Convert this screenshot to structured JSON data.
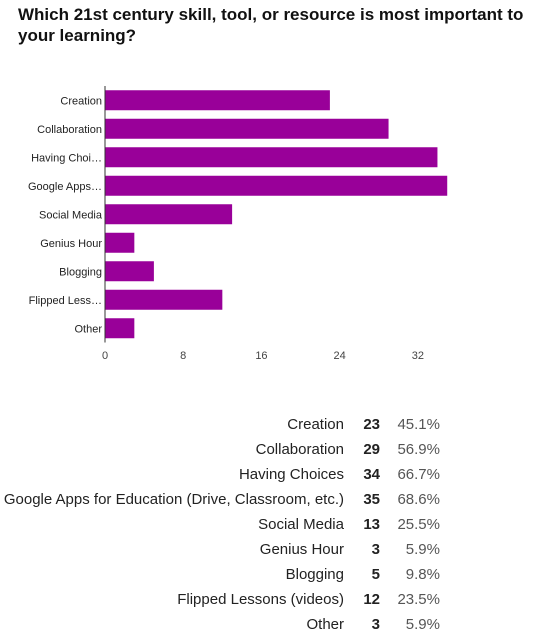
{
  "question": "Which 21st century skill, tool, or resource is most important to your learning?",
  "colors": {
    "bar": "#990099",
    "axis": "#333333",
    "tick_text": "#444444"
  },
  "chart_data": {
    "type": "bar",
    "orientation": "horizontal",
    "categories": [
      "Creation",
      "Collaboration",
      "Having Choi…",
      "Google Apps…",
      "Social Media",
      "Genius Hour",
      "Blogging",
      "Flipped Less…",
      "Other"
    ],
    "values": [
      23,
      29,
      34,
      35,
      13,
      3,
      5,
      12,
      3
    ],
    "xticks": [
      0,
      8,
      16,
      24,
      32
    ],
    "xlim": [
      0,
      36
    ],
    "grid": false,
    "legend": "none"
  },
  "summary": [
    {
      "label": "Creation",
      "count": "23",
      "percent": "45.1%"
    },
    {
      "label": "Collaboration",
      "count": "29",
      "percent": "56.9%"
    },
    {
      "label": "Having Choices",
      "count": "34",
      "percent": "66.7%"
    },
    {
      "label": "Google Apps for Education (Drive, Classroom, etc.)",
      "count": "35",
      "percent": "68.6%"
    },
    {
      "label": "Social Media",
      "count": "13",
      "percent": "25.5%"
    },
    {
      "label": "Genius Hour",
      "count": "3",
      "percent": "5.9%"
    },
    {
      "label": "Blogging",
      "count": "5",
      "percent": "9.8%"
    },
    {
      "label": "Flipped Lessons (videos)",
      "count": "12",
      "percent": "23.5%"
    },
    {
      "label": "Other",
      "count": "3",
      "percent": "5.9%"
    }
  ]
}
